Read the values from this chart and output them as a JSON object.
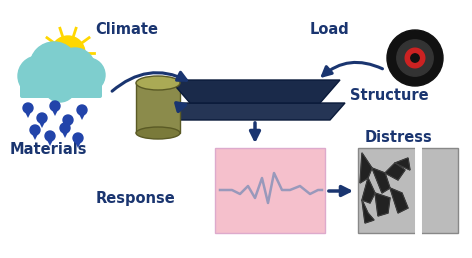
{
  "bg_color": "#ffffff",
  "arrow_color": "#1a3570",
  "text_color": "#1a3570",
  "labels": {
    "climate": "Climate",
    "materials": "Materials",
    "load": "Load",
    "structure": "Structure",
    "response": "Response",
    "distress": "Distress"
  },
  "label_fontsize": 10.5,
  "label_fontweight": "bold",
  "cloud_color": "#7ECECE",
  "sun_color": "#FFD700",
  "rain_color": "#2244AA",
  "cylinder_body": "#8B8B4B",
  "cylinder_top": "#AAAA55",
  "cylinder_bot": "#7A7A3A",
  "cylinder_edge": "#5a5a25",
  "wheel_outer": "#111111",
  "wheel_mid": "#333333",
  "wheel_red": "#CC2222",
  "struct_top": "#1a2a4a",
  "struct_bot": "#253555",
  "resp_fill": "#f5c0cc",
  "resp_edge": "#ddaacc",
  "ekg_color": "#9999bb",
  "distress_fill": "#bbbbbb"
}
